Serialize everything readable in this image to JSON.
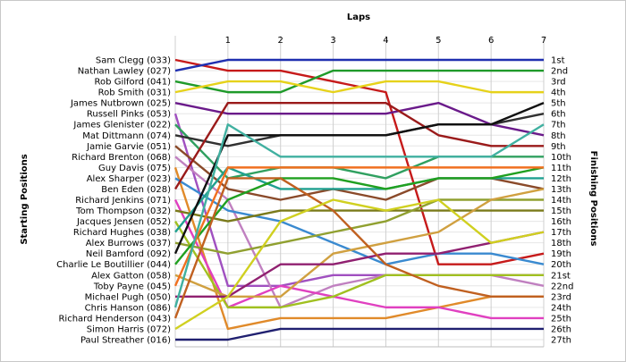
{
  "chart_data": {
    "type": "line",
    "title": "Laps",
    "ylabel_left": "Starting Positions",
    "ylabel_right": "Finishing Positions",
    "x": [
      0,
      1,
      2,
      3,
      4,
      5,
      6,
      7
    ],
    "x_tick_labels": [
      "1",
      "2",
      "3",
      "4",
      "5",
      "6",
      "7"
    ],
    "ylim": [
      1,
      27
    ],
    "position_labels": [
      "1st",
      "2nd",
      "3rd",
      "4th",
      "5th",
      "6th",
      "7th",
      "8th",
      "9th",
      "10th",
      "11th",
      "12th",
      "13th",
      "14th",
      "15th",
      "16th",
      "17th",
      "18th",
      "19th",
      "20th",
      "21st",
      "22nd",
      "23rd",
      "24th",
      "25th",
      "26th",
      "27th"
    ],
    "grid": true,
    "series": [
      {
        "name": "Sam Clegg (033)",
        "color": "#c61a1a",
        "values": [
          1,
          2,
          2,
          3,
          4,
          20,
          20,
          19
        ]
      },
      {
        "name": "Nathan Lawley (027)",
        "color": "#1f2fb0",
        "values": [
          2,
          1,
          1,
          1,
          1,
          1,
          1,
          1
        ]
      },
      {
        "name": "Rob Gilford (041)",
        "color": "#1f9a2a",
        "values": [
          3,
          4,
          4,
          2,
          2,
          2,
          2,
          2
        ]
      },
      {
        "name": "Rob Smith (031)",
        "color": "#e6d21a",
        "values": [
          4,
          3,
          3,
          4,
          3,
          3,
          4,
          4
        ]
      },
      {
        "name": "James Nutbrown (025)",
        "color": "#6a1a8a",
        "values": [
          5,
          6,
          6,
          6,
          6,
          5,
          7,
          8
        ]
      },
      {
        "name": "Russell Pinks (053)",
        "color": "#a050c0",
        "values": [
          6,
          22,
          22,
          21,
          21,
          21,
          21,
          21
        ]
      },
      {
        "name": "James Glenister (022)",
        "color": "#30a060",
        "values": [
          7,
          12,
          11,
          11,
          12,
          10,
          10,
          10
        ]
      },
      {
        "name": "Mat Dittmann (074)",
        "color": "#303030",
        "values": [
          8,
          9,
          8,
          8,
          8,
          7,
          7,
          6
        ]
      },
      {
        "name": "Jamie Garvie (051)",
        "color": "#8a4a2a",
        "values": [
          9,
          13,
          14,
          13,
          14,
          12,
          12,
          13
        ]
      },
      {
        "name": "Richard Brenton (068)",
        "color": "#c080c0",
        "values": [
          10,
          14,
          24,
          22,
          21,
          21,
          21,
          22
        ]
      },
      {
        "name": "Guy Davis (075)",
        "color": "#e08a2a",
        "values": [
          11,
          26,
          25,
          25,
          25,
          24,
          23,
          23
        ]
      },
      {
        "name": "Alex Sharper (023)",
        "color": "#3a8ad0",
        "values": [
          12,
          15,
          16,
          18,
          20,
          19,
          19,
          20
        ]
      },
      {
        "name": "Ben Eden (028)",
        "color": "#9a1a1a",
        "values": [
          13,
          5,
          5,
          5,
          5,
          8,
          9,
          9
        ]
      },
      {
        "name": "Richard Jenkins (071)",
        "color": "#e040c0",
        "values": [
          14,
          24,
          22,
          23,
          24,
          24,
          25,
          25
        ]
      },
      {
        "name": "Tom Thompson (032)",
        "color": "#7a7a1a",
        "values": [
          15,
          16,
          15,
          15,
          15,
          15,
          15,
          15
        ]
      },
      {
        "name": "Jacques Jensen (052)",
        "color": "#a0c020",
        "values": [
          16,
          24,
          24,
          23,
          21,
          21,
          21,
          21
        ]
      },
      {
        "name": "Richard Hughes (038)",
        "color": "#20a090",
        "values": [
          17,
          11,
          13,
          13,
          13,
          12,
          12,
          12
        ]
      },
      {
        "name": "Alex Burrows (037)",
        "color": "#90a030",
        "values": [
          18,
          19,
          18,
          17,
          16,
          14,
          14,
          14
        ]
      },
      {
        "name": "Neil Bamford (092)",
        "color": "#101010",
        "values": [
          19,
          8,
          8,
          8,
          8,
          7,
          7,
          5
        ]
      },
      {
        "name": "Charlie Le Boutillier (044)",
        "color": "#20a020",
        "values": [
          20,
          14,
          12,
          12,
          13,
          12,
          12,
          11
        ]
      },
      {
        "name": "Alex Gatton (058)",
        "color": "#d0a040",
        "values": [
          21,
          23,
          23,
          19,
          18,
          17,
          14,
          13
        ]
      },
      {
        "name": "Toby Payne (045)",
        "color": "#f07020",
        "values": [
          22,
          11,
          11,
          11,
          11,
          11,
          11,
          11
        ]
      },
      {
        "name": "Michael Pugh (050)",
        "color": "#902070",
        "values": [
          23,
          23,
          20,
          20,
          19,
          19,
          18,
          17
        ]
      },
      {
        "name": "Chris Hanson (086)",
        "color": "#40b0a0",
        "values": [
          24,
          7,
          10,
          10,
          10,
          10,
          10,
          7
        ]
      },
      {
        "name": "Richard Henderson (043)",
        "color": "#c06020",
        "values": [
          25,
          12,
          12,
          15,
          20,
          22,
          23,
          23
        ]
      },
      {
        "name": "Simon Harris (072)",
        "color": "#d0d020",
        "values": [
          26,
          23,
          16,
          14,
          15,
          14,
          18,
          17
        ]
      },
      {
        "name": "Paul Streather (016)",
        "color": "#202070",
        "values": [
          27,
          27,
          26,
          26,
          26,
          26,
          26,
          26
        ]
      }
    ]
  }
}
